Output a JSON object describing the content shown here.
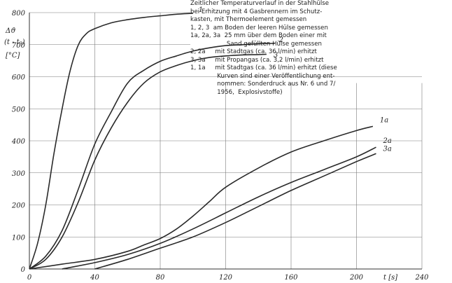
{
  "chart_data": {
    "type": "line",
    "y_axis_label": [
      "Δϑ",
      "(t - t₀)",
      "[°C]"
    ],
    "x_axis_label": "t [s]",
    "xlim": [
      0,
      240
    ],
    "ylim": [
      0,
      800
    ],
    "x_ticks": [
      0,
      40,
      80,
      120,
      160,
      200,
      240
    ],
    "y_ticks": [
      0,
      100,
      200,
      300,
      400,
      500,
      600,
      700,
      800
    ],
    "grid": true,
    "series": [
      {
        "name": "1",
        "x": [
          0,
          5,
          10,
          15,
          20,
          25,
          30,
          35,
          40,
          50,
          60,
          70,
          80,
          90,
          100
        ],
        "y": [
          0,
          80,
          200,
          360,
          500,
          620,
          700,
          735,
          750,
          768,
          778,
          785,
          790,
          795,
          798
        ]
      },
      {
        "name": "2",
        "x": [
          0,
          10,
          20,
          30,
          40,
          50,
          60,
          70,
          80,
          90,
          100,
          110,
          120,
          130,
          140,
          150
        ],
        "y": [
          0,
          40,
          120,
          250,
          390,
          490,
          580,
          620,
          648,
          665,
          680,
          690,
          697,
          700,
          703,
          704
        ]
      },
      {
        "name": "3",
        "x": [
          0,
          10,
          20,
          30,
          40,
          50,
          60,
          70,
          80,
          90,
          100,
          110,
          120,
          130,
          140,
          145
        ],
        "y": [
          0,
          30,
          100,
          210,
          340,
          440,
          520,
          580,
          615,
          635,
          650,
          660,
          665,
          668,
          669,
          670
        ]
      },
      {
        "name": "1a",
        "x": [
          0,
          20,
          40,
          60,
          70,
          80,
          90,
          100,
          110,
          120,
          140,
          160,
          180,
          200,
          210
        ],
        "y": [
          0,
          15,
          30,
          55,
          75,
          95,
          125,
          165,
          210,
          255,
          315,
          365,
          400,
          432,
          445
        ]
      },
      {
        "name": "2a",
        "x": [
          20,
          40,
          60,
          80,
          100,
          120,
          140,
          160,
          180,
          200,
          212
        ],
        "y": [
          0,
          20,
          45,
          80,
          125,
          175,
          225,
          270,
          310,
          350,
          380
        ]
      },
      {
        "name": "3a",
        "x": [
          40,
          60,
          80,
          100,
          120,
          140,
          160,
          180,
          200,
          212
        ],
        "y": [
          0,
          30,
          65,
          100,
          145,
          195,
          245,
          290,
          335,
          360
        ]
      }
    ]
  },
  "legend": {
    "lines": [
      "Zeitlicher Temperaturverlauf in der Stahlhülse",
      "bei Erhitzung mit 4 Gasbrennern im Schutz-",
      "kasten, mit Thermoelement gemessen",
      "1, 2, 3  am Boden der leeren Hülse gemessen",
      "1a, 2a, 3a  25 mm über dem Boden einer mit",
      "                   Sand gefüllten Hülse gemessen",
      "2, 2a     mit Stadtgas (ca. 36 l/min) erhitzt",
      "3, 3a     mit Propangas (ca. 3,2 l/min) erhitzt",
      "1, 1a     mit Stadtgas (ca. 36 l/min) erhitzt (diese",
      "              Kurven sind einer Veröffentlichung ent-",
      "              nommen: Sonderdruck aus Nr. 6 und 7/",
      "              1956,  Explosivstoffe)"
    ]
  }
}
